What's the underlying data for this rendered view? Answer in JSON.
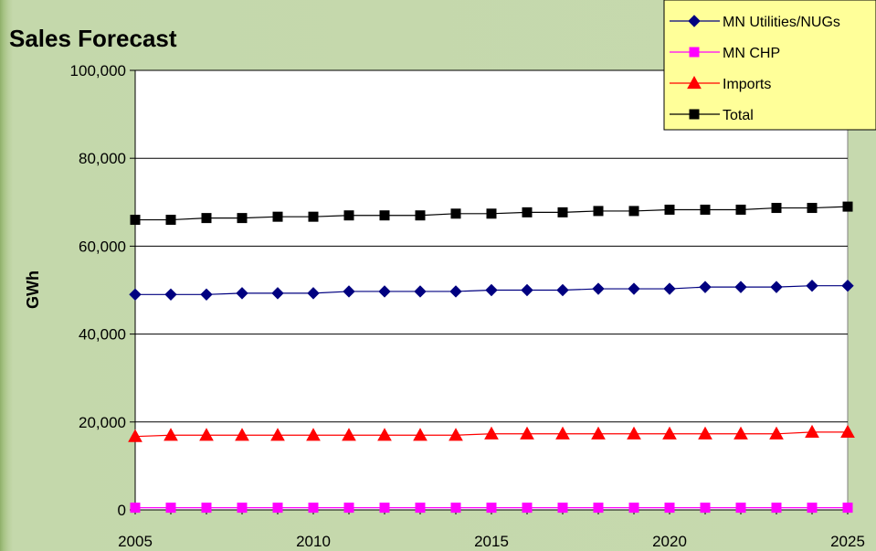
{
  "chart_data": {
    "type": "line",
    "title": "Sales Forecast",
    "ylabel": "GWh",
    "xlabel": "",
    "ylim": [
      0,
      100000
    ],
    "xlim": [
      2005,
      2025
    ],
    "x_ticks": [
      "2005",
      "2010",
      "2015",
      "2020",
      "2025"
    ],
    "y_ticks": [
      "0",
      "20,000",
      "40,000",
      "60,000",
      "80,000",
      "100,000"
    ],
    "y_tick_values": [
      0,
      20000,
      40000,
      60000,
      80000,
      100000
    ],
    "x_tick_values": [
      2005,
      2010,
      2015,
      2020,
      2025
    ],
    "grid": "horizontal",
    "legend_position": "top-right",
    "x": [
      2005,
      2006,
      2007,
      2008,
      2009,
      2010,
      2011,
      2012,
      2013,
      2014,
      2015,
      2016,
      2017,
      2018,
      2019,
      2020,
      2021,
      2022,
      2023,
      2024,
      2025
    ],
    "series": [
      {
        "name": "MN Utilities/NUGs",
        "color": "#000080",
        "marker": "diamond",
        "values": [
          49000,
          49000,
          49000,
          49300,
          49300,
          49300,
          49700,
          49700,
          49700,
          49700,
          50000,
          50000,
          50000,
          50300,
          50300,
          50300,
          50700,
          50700,
          50700,
          51000,
          51000
        ]
      },
      {
        "name": "MN CHP",
        "color": "#ff00ff",
        "marker": "square",
        "values": [
          500,
          500,
          500,
          500,
          500,
          500,
          500,
          500,
          500,
          500,
          500,
          500,
          500,
          500,
          500,
          500,
          500,
          500,
          500,
          500,
          500
        ]
      },
      {
        "name": "Imports",
        "color": "#ff0000",
        "marker": "triangle",
        "values": [
          16700,
          17000,
          17000,
          17000,
          17000,
          17000,
          17000,
          17000,
          17000,
          17000,
          17300,
          17300,
          17300,
          17300,
          17300,
          17300,
          17300,
          17300,
          17300,
          17700,
          17700
        ]
      },
      {
        "name": "Total",
        "color": "#000000",
        "marker": "square",
        "values": [
          66000,
          66000,
          66400,
          66400,
          66700,
          66700,
          67000,
          67000,
          67000,
          67400,
          67400,
          67700,
          67700,
          68000,
          68000,
          68300,
          68300,
          68300,
          68700,
          68700,
          69000
        ]
      }
    ]
  },
  "colors": {
    "plot_background": "#ffffff",
    "legend_background": "#ffff99",
    "gridline": "#000000"
  }
}
